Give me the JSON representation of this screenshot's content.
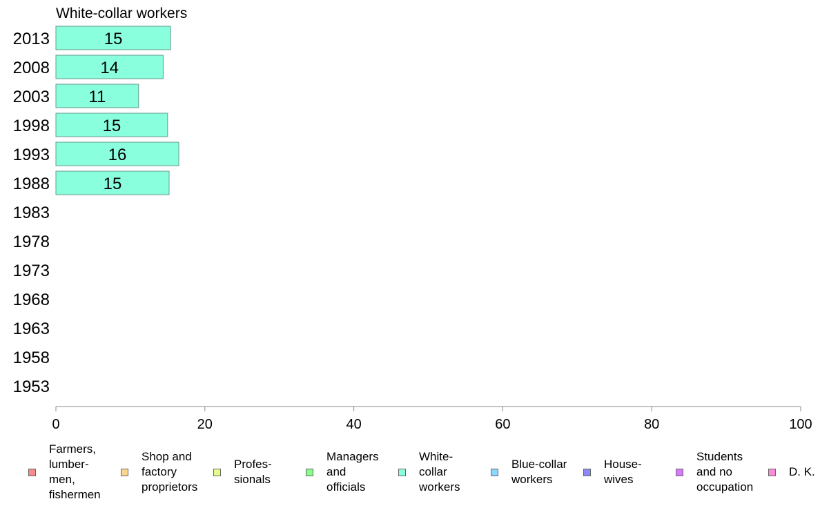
{
  "chart_data": {
    "type": "bar",
    "orientation": "horizontal",
    "title": "White-collar workers",
    "categories": [
      "2013",
      "2008",
      "2003",
      "1998",
      "1993",
      "1988",
      "1983",
      "1978",
      "1973",
      "1968",
      "1963",
      "1958",
      "1953"
    ],
    "values": [
      15.4,
      14.4,
      11.1,
      15.0,
      16.5,
      15.2,
      null,
      null,
      null,
      null,
      null,
      null,
      null
    ],
    "value_labels": [
      "15",
      "14",
      "11",
      "15",
      "16",
      "15",
      "",
      "",
      "",
      "",
      "",
      "",
      ""
    ],
    "bar_color": "#8affdd",
    "xlim": [
      0,
      100
    ],
    "xticks": [
      "0",
      "20",
      "40",
      "60",
      "80",
      "100"
    ],
    "xlabel": "",
    "ylabel": "",
    "grid": false,
    "legend_position": "bottom"
  },
  "legend": [
    {
      "label": "Farmers,\nlumber-\nmen,\nfishermen",
      "color": "#f88a8a"
    },
    {
      "label": "Shop and\nfactory\nproprietors",
      "color": "#fcd68a"
    },
    {
      "label": "Profes-\nsionals",
      "color": "#e3fc8a"
    },
    {
      "label": "Managers\nand\nofficials",
      "color": "#8afc8a"
    },
    {
      "label": "White-\ncollar\nworkers",
      "color": "#8affdd"
    },
    {
      "label": "Blue-collar\nworkers",
      "color": "#8ad6fc"
    },
    {
      "label": "House-\nwives",
      "color": "#8a8af8"
    },
    {
      "label": "Students\nand no\noccupation",
      "color": "#d67afc"
    },
    {
      "label": "D. K.",
      "color": "#fc8ad6"
    }
  ]
}
